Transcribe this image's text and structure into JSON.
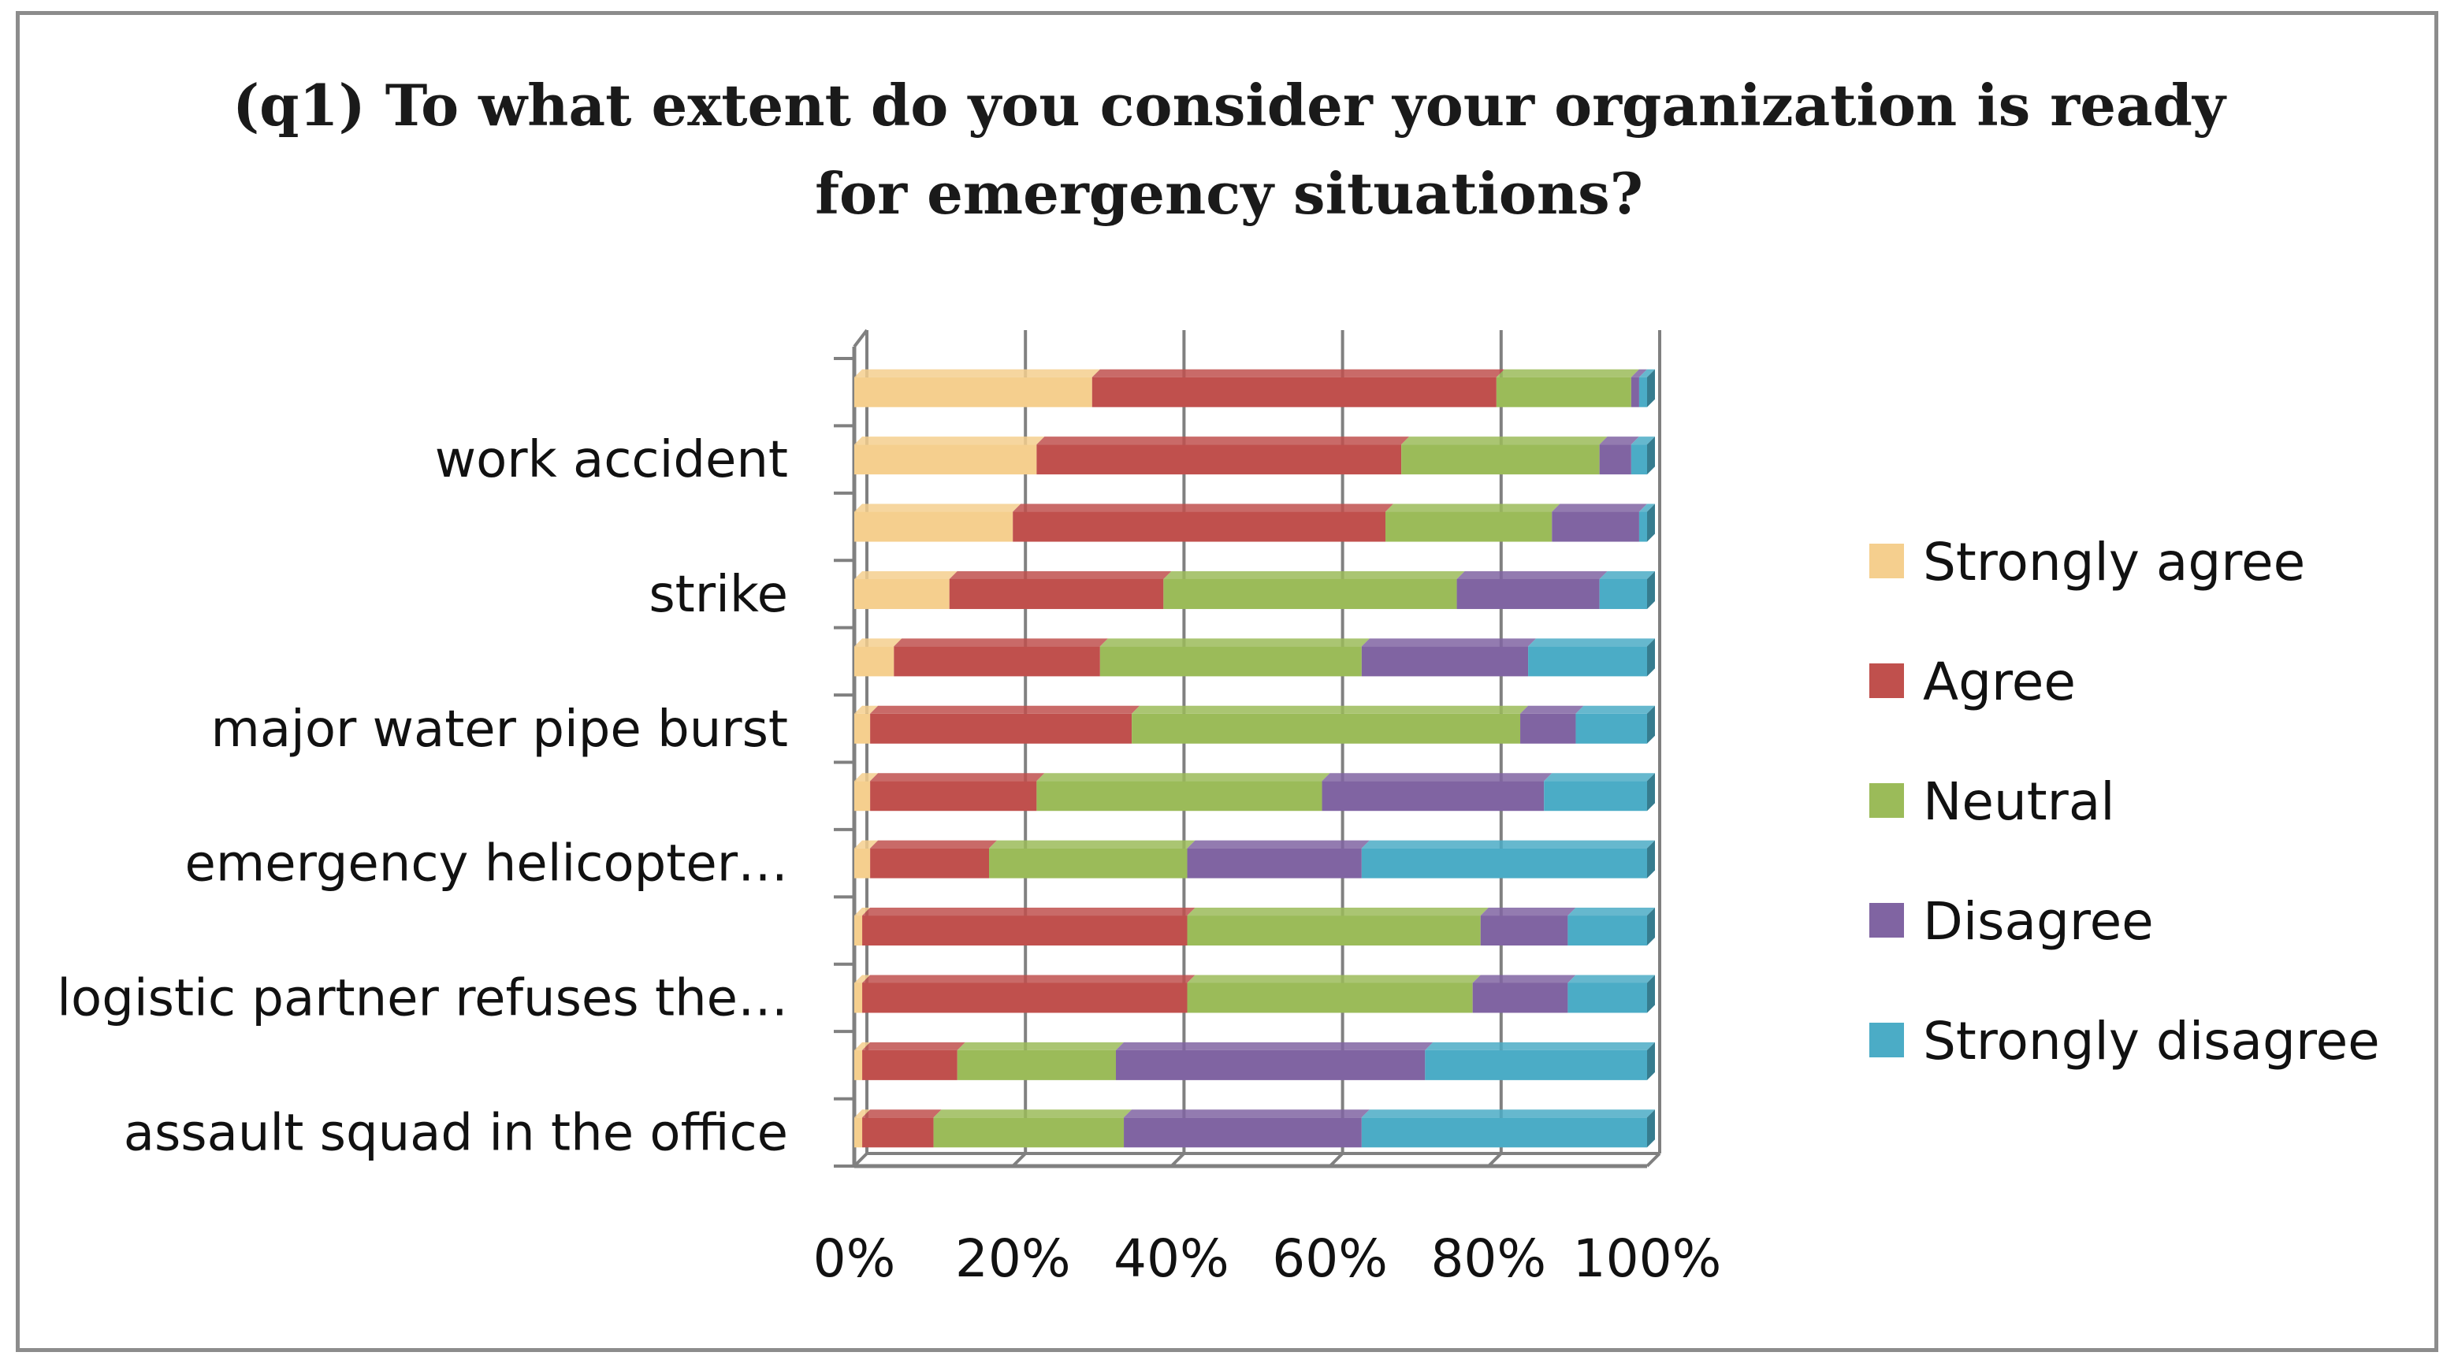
{
  "chart_data": {
    "type": "bar",
    "orientation": "horizontal",
    "stacked": "percent",
    "title": "(q1) To what extent do you consider your organization is ready for emergency situations?",
    "title_lines": [
      "(q1) To what extent do you consider your organization is ready",
      "for emergency situations?"
    ],
    "categories": [
      "",
      "work accident",
      "",
      "strike",
      "",
      "major water pipe burst",
      "",
      "emergency helicopter…",
      "",
      "logistic partner refuses the…",
      "",
      "assault squad in the office"
    ],
    "series": [
      {
        "name": "Strongly agree",
        "color": "#F5CF8E",
        "values": [
          30,
          23,
          20,
          12,
          5,
          2,
          2,
          2,
          1,
          1,
          1,
          1
        ]
      },
      {
        "name": "Agree",
        "color": "#C0504D",
        "values": [
          51,
          46,
          47,
          27,
          26,
          33,
          21,
          15,
          41,
          41,
          12,
          9
        ]
      },
      {
        "name": "Neutral",
        "color": "#9BBB59",
        "values": [
          17,
          25,
          21,
          37,
          33,
          49,
          36,
          25,
          37,
          36,
          20,
          24
        ]
      },
      {
        "name": "Disagree",
        "color": "#8064A2",
        "values": [
          1,
          4,
          11,
          18,
          21,
          7,
          28,
          22,
          11,
          12,
          39,
          30
        ]
      },
      {
        "name": "Strongly disagree",
        "color": "#4BACC6",
        "values": [
          1,
          2,
          1,
          6,
          15,
          9,
          13,
          36,
          10,
          10,
          28,
          36
        ]
      }
    ],
    "x_ticks": [
      "0%",
      "20%",
      "40%",
      "60%",
      "80%",
      "100%"
    ],
    "xlim": [
      0,
      100
    ],
    "xlabel": "",
    "ylabel": "",
    "grid": true,
    "legend": "right"
  }
}
